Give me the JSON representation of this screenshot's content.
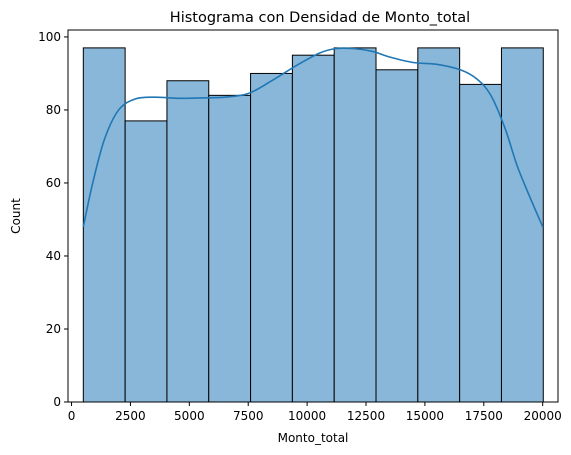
{
  "chart_data": {
    "type": "bar",
    "title": "Histograma con Densidad de Monto_total",
    "xlabel": "Monto_total",
    "ylabel": "Count",
    "xlim": [
      -150,
      20650
    ],
    "ylim": [
      0,
      101.9
    ],
    "x_ticks": [
      0,
      2500,
      5000,
      7500,
      10000,
      12500,
      15000,
      17500,
      20000
    ],
    "y_ticks": [
      0,
      20,
      40,
      60,
      80,
      100
    ],
    "bins": {
      "edges": [
        500,
        2275,
        4050,
        5825,
        7600,
        9375,
        11150,
        12925,
        14700,
        16475,
        18250,
        20025
      ],
      "counts": [
        97,
        77,
        88,
        84,
        90,
        95,
        97,
        91,
        97,
        87,
        97
      ]
    },
    "density_curve": {
      "x": [
        500,
        900,
        1400,
        2000,
        2700,
        3500,
        4500,
        5500,
        6500,
        7500,
        8500,
        9500,
        10500,
        11200,
        12000,
        12800,
        13500,
        14500,
        15500,
        16500,
        17200,
        17800,
        18400,
        18900,
        19400,
        20000
      ],
      "y": [
        48,
        60,
        72,
        80,
        83,
        83.5,
        83.2,
        83.3,
        83.5,
        84.5,
        88,
        92,
        95.5,
        96.8,
        96.8,
        96,
        94.5,
        93,
        92.5,
        91,
        88.5,
        84,
        75,
        65,
        57,
        48
      ]
    },
    "colors": {
      "bar_fill": "#89b7d9",
      "bar_edge": "#000000",
      "curve": "#1f77b4"
    },
    "grid": false,
    "legend": "none"
  }
}
